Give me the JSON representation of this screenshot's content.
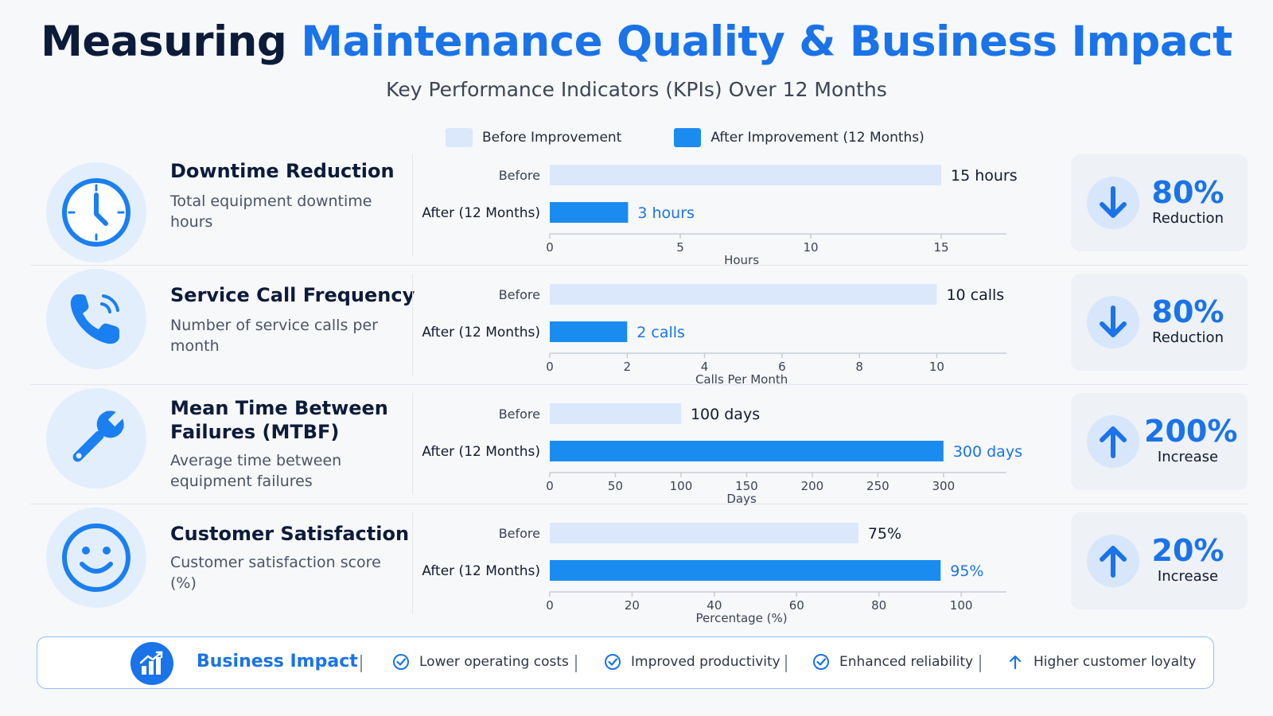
{
  "header": {
    "title_part1": "Measuring",
    "title_part2": "Maintenance Quality & Business Impact",
    "subtitle": "Key Performance Indicators (KPIs) Over 12 Months"
  },
  "legend": {
    "before": "Before Improvement",
    "after": "After Improvement (12 Months)"
  },
  "colors": {
    "accent": "#1a73e8",
    "before_bar": "#dbe8fb",
    "after_bar": "#1a8cf0",
    "navy": "#0d1b3a"
  },
  "kpis": [
    {
      "icon": "clock-icon",
      "title": "Downtime Reduction",
      "description": "Total equipment downtime hours",
      "impact_pct": "80%",
      "impact_label": "Reduction",
      "impact_direction": "down"
    },
    {
      "icon": "phone-icon",
      "title": "Service Call Frequency",
      "description": "Number of service calls per month",
      "impact_pct": "80%",
      "impact_label": "Reduction",
      "impact_direction": "down"
    },
    {
      "icon": "wrench-icon",
      "title": "Mean Time Between Failures (MTBF)",
      "description": "Average time between equipment failures",
      "impact_pct": "200%",
      "impact_label": "Increase",
      "impact_direction": "up"
    },
    {
      "icon": "smiley-icon",
      "title": "Customer Satisfaction",
      "description": "Customer satisfaction score (%)",
      "impact_pct": "20%",
      "impact_label": "Increase",
      "impact_direction": "up"
    }
  ],
  "chart_data": [
    {
      "type": "bar",
      "orientation": "horizontal",
      "categories": [
        "Before",
        "After (12 Months)"
      ],
      "values": [
        15,
        3
      ],
      "data_labels": [
        "15 hours",
        "3 hours"
      ],
      "xlabel": "Hours",
      "xticks": [
        0,
        5,
        10,
        15
      ],
      "xlim": [
        0,
        17.5
      ]
    },
    {
      "type": "bar",
      "orientation": "horizontal",
      "categories": [
        "Before",
        "After (12 Months)"
      ],
      "values": [
        10,
        2
      ],
      "data_labels": [
        "10 calls",
        "2 calls"
      ],
      "xlabel": "Calls Per Month",
      "xticks": [
        0,
        2,
        4,
        6,
        8,
        10
      ],
      "xlim": [
        0,
        11.8
      ]
    },
    {
      "type": "bar",
      "orientation": "horizontal",
      "categories": [
        "Before",
        "After (12 Months)"
      ],
      "values": [
        100,
        300
      ],
      "data_labels": [
        "100 days",
        "300 days"
      ],
      "xlabel": "Days",
      "xticks": [
        0,
        50,
        100,
        150,
        200,
        250,
        300
      ],
      "xlim": [
        0,
        348
      ]
    },
    {
      "type": "bar",
      "orientation": "horizontal",
      "categories": [
        "Before",
        "After (12 Months)"
      ],
      "values": [
        75,
        95
      ],
      "data_labels": [
        "75%",
        "95%"
      ],
      "xlabel": "Percentage (%)",
      "xticks": [
        0,
        20,
        40,
        60,
        80,
        100
      ],
      "xlim": [
        0,
        111
      ]
    }
  ],
  "footer": {
    "label": "Business Impact",
    "items": [
      {
        "text": "Lower operating costs",
        "icon": "check-circle-icon"
      },
      {
        "text": "Improved productivity",
        "icon": "check-circle-icon"
      },
      {
        "text": "Enhanced reliability",
        "icon": "check-circle-icon"
      },
      {
        "text": "Higher customer loyalty",
        "icon": "arrow-up-icon"
      }
    ]
  }
}
